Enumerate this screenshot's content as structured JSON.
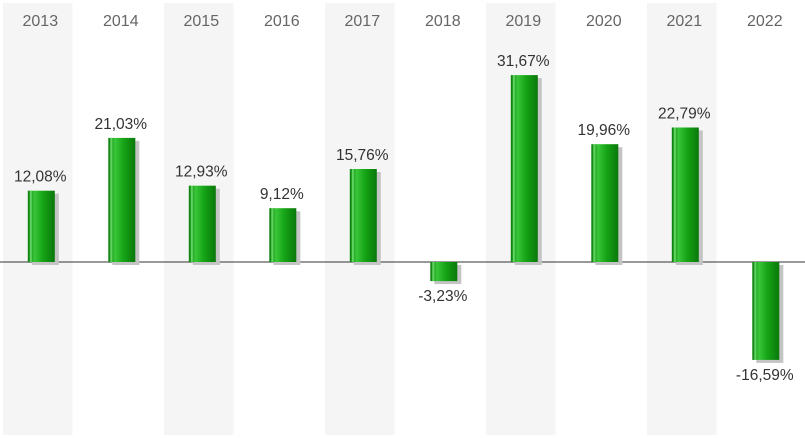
{
  "chart_data": {
    "type": "bar",
    "categories": [
      "2013",
      "2014",
      "2015",
      "2016",
      "2017",
      "2018",
      "2019",
      "2020",
      "2021",
      "2022"
    ],
    "values": [
      12.08,
      21.03,
      12.93,
      9.12,
      15.76,
      -3.23,
      31.67,
      19.96,
      22.79,
      -16.59
    ],
    "value_labels": [
      "12,08%",
      "21,03%",
      "12,93%",
      "9,12%",
      "15,76%",
      "-3,23%",
      "31,67%",
      "19,96%",
      "22,79%",
      "-16,59%"
    ],
    "title": "",
    "xlabel": "",
    "ylabel": "",
    "grid": false,
    "legend": "none",
    "colors": {
      "bar": "#14a014",
      "bar_dark": "#0a7a0a",
      "bar_light": "#6fdc6f",
      "shadow": "#c4c4c4",
      "band": "#f5f5f5",
      "baseline": "#333333"
    }
  }
}
